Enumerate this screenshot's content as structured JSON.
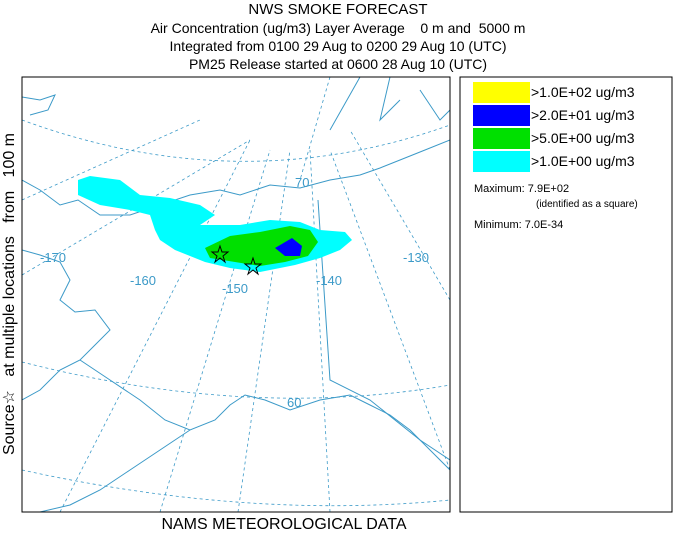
{
  "header": {
    "title": "NWS SMOKE FORECAST",
    "lines": [
      "Air Concentration (ug/m3) Layer Average    0 m and  5000 m",
      "Integrated from 0100 29 Aug to 0200 29 Aug 10 (UTC)",
      "PM25 Release started at 0600 28 Aug 10 (UTC)"
    ]
  },
  "side_label": "Source☆   at multiple locations   from   100 m",
  "footer": "NAMS METEOROLOGICAL DATA",
  "legend": {
    "entries": [
      {
        "label": ">1.0E+02 ug/m3",
        "color": "#ffff00"
      },
      {
        "label": ">2.0E+01 ug/m3",
        "color": "#0000ff"
      },
      {
        "label": ">5.0E+00 ug/m3",
        "color": "#00e000"
      },
      {
        "label": ">1.0E+00 ug/m3",
        "color": "#00ffff"
      }
    ],
    "maximum": "Maximum: 7.9E+02",
    "max_note": "(identified as a square)",
    "minimum": "Minimum: 7.0E-34"
  },
  "map": {
    "lon_labels": [
      "-170",
      "-160",
      "-150",
      "-140",
      "-130"
    ],
    "lat_labels": [
      "70",
      "60"
    ]
  }
}
